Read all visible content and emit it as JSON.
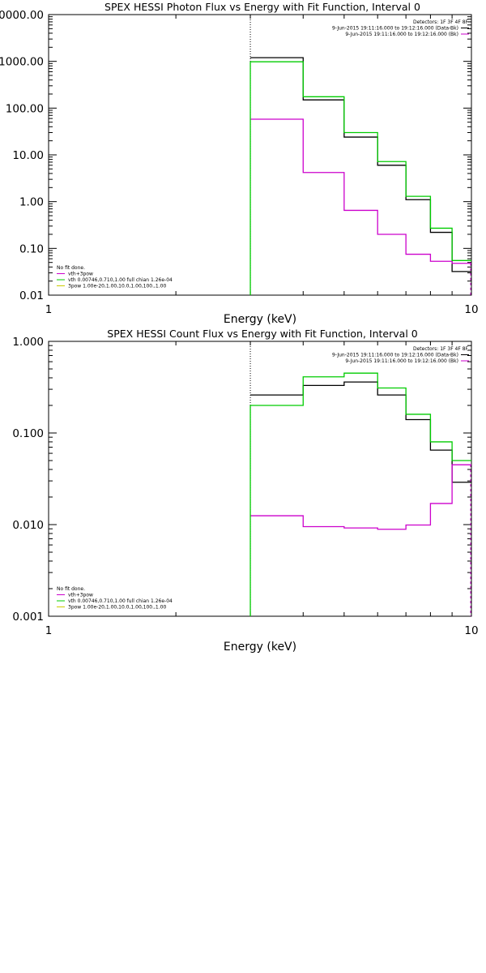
{
  "chart_data": [
    {
      "type": "line",
      "title": "SPEX HESSI Photon Flux vs Energy with Fit Function, Interval 0",
      "xlabel": "Energy (keV)",
      "ylabel": "",
      "x_scale": "log",
      "y_scale": "log",
      "xlim": [
        1,
        10
      ],
      "ylim": [
        0.01,
        10000
      ],
      "x_tick_labels": [
        {
          "value": 1,
          "label": "1"
        },
        {
          "value": 10,
          "label": "10"
        }
      ],
      "y_tick_labels": [
        {
          "value": 10000,
          "label": "10000.00"
        },
        {
          "value": 1000,
          "label": "1000.00"
        },
        {
          "value": 100,
          "label": "100.00"
        },
        {
          "value": 10,
          "label": "10.00"
        },
        {
          "value": 1,
          "label": "1.00"
        },
        {
          "value": 0.1,
          "label": "0.10"
        },
        {
          "value": 0.01,
          "label": "0.01"
        }
      ],
      "vline_x": 3,
      "bin_edges": [
        3,
        4,
        5,
        6,
        7,
        8,
        9,
        10
      ],
      "series": [
        {
          "name": "9-Jun-2015 19:11:16.000 to 19:12:16.000 (Data-Bk)",
          "color": "#000000",
          "values": [
            1200,
            150,
            24,
            6,
            1.1,
            0.22,
            0.032
          ]
        },
        {
          "name": "9-Jun-2015 19:11:16.000 to 19:12:16.000 (Bk)",
          "color": "#cc00cc",
          "values": [
            58,
            4.2,
            0.65,
            0.2,
            0.075,
            0.053,
            0.048
          ]
        },
        {
          "name": "",
          "color": "#00cc00",
          "values": [
            980,
            175,
            30,
            7.2,
            1.3,
            0.27,
            0.055
          ]
        }
      ],
      "legend_top": {
        "position": "top-right",
        "lines": [
          {
            "text": "Detectors: 1F 3F 4F 8F",
            "color": ""
          },
          {
            "text": "9-Jun-2015 19:11:16.000 to 19:12:16.000 (Data-Bk)",
            "color": "#000000"
          },
          {
            "text": "9-Jun-2015 19:11:16.000 to 19:12:16.000 (Bk)",
            "color": "#cc00cc"
          }
        ]
      },
      "legend_bottom": {
        "position": "bottom-left",
        "lines": [
          {
            "text": "No fit done.",
            "color": ""
          },
          {
            "text": "vth+3pow",
            "color": "#cc00cc"
          },
          {
            "text": "vth 0.00746,0.710,1.00  full chian 1.26e-04",
            "color": "#00cc00"
          },
          {
            "text": "3pow 1.00e-20,1.00,10.0,1.00,100.,1.00",
            "color": "#cccc00"
          }
        ]
      }
    },
    {
      "type": "line",
      "title": "SPEX HESSI Count Flux vs Energy with Fit Function, Interval 0",
      "xlabel": "Energy (keV)",
      "ylabel": "",
      "x_scale": "log",
      "y_scale": "log",
      "xlim": [
        1,
        10
      ],
      "ylim": [
        0.001,
        1
      ],
      "x_tick_labels": [
        {
          "value": 1,
          "label": "1"
        },
        {
          "value": 10,
          "label": "10"
        }
      ],
      "y_tick_labels": [
        {
          "value": 1,
          "label": "1.000"
        },
        {
          "value": 0.1,
          "label": "0.100"
        },
        {
          "value": 0.01,
          "label": "0.010"
        },
        {
          "value": 0.001,
          "label": "0.001"
        }
      ],
      "vline_x": 3,
      "bin_edges": [
        3,
        4,
        5,
        6,
        7,
        8,
        9,
        10
      ],
      "series": [
        {
          "name": "9-Jun-2015 19:11:16.000 to 19:12:16.000 (Data-Bk)",
          "color": "#000000",
          "values": [
            0.26,
            0.33,
            0.36,
            0.26,
            0.14,
            0.065,
            0.029
          ]
        },
        {
          "name": "9-Jun-2015 19:11:16.000 to 19:12:16.000 (Bk)",
          "color": "#cc00cc",
          "values": [
            0.0125,
            0.0095,
            0.0092,
            0.0089,
            0.0099,
            0.017,
            0.045
          ]
        },
        {
          "name": "",
          "color": "#00cc00",
          "values": [
            0.2,
            0.41,
            0.45,
            0.31,
            0.16,
            0.08,
            0.05
          ]
        }
      ],
      "legend_top": {
        "position": "top-right",
        "lines": [
          {
            "text": "Detectors: 1F 3F 4F 8F",
            "color": ""
          },
          {
            "text": "9-Jun-2015 19:11:16.000 to 19:12:16.000 (Data-Bk)",
            "color": "#000000"
          },
          {
            "text": "9-Jun-2015 19:11:16.000 to 19:12:16.000 (Bk)",
            "color": "#cc00cc"
          }
        ]
      },
      "legend_bottom": {
        "position": "bottom-left",
        "lines": [
          {
            "text": "No fit done.",
            "color": ""
          },
          {
            "text": "vth+3pow",
            "color": "#cc00cc"
          },
          {
            "text": "vth 0.00746,0.710,1.00  full chian 1.26e-04",
            "color": "#00cc00"
          },
          {
            "text": "3pow 1.00e-20,1.00,10.0,1.00,100.,1.00",
            "color": "#cccc00"
          }
        ]
      }
    }
  ]
}
